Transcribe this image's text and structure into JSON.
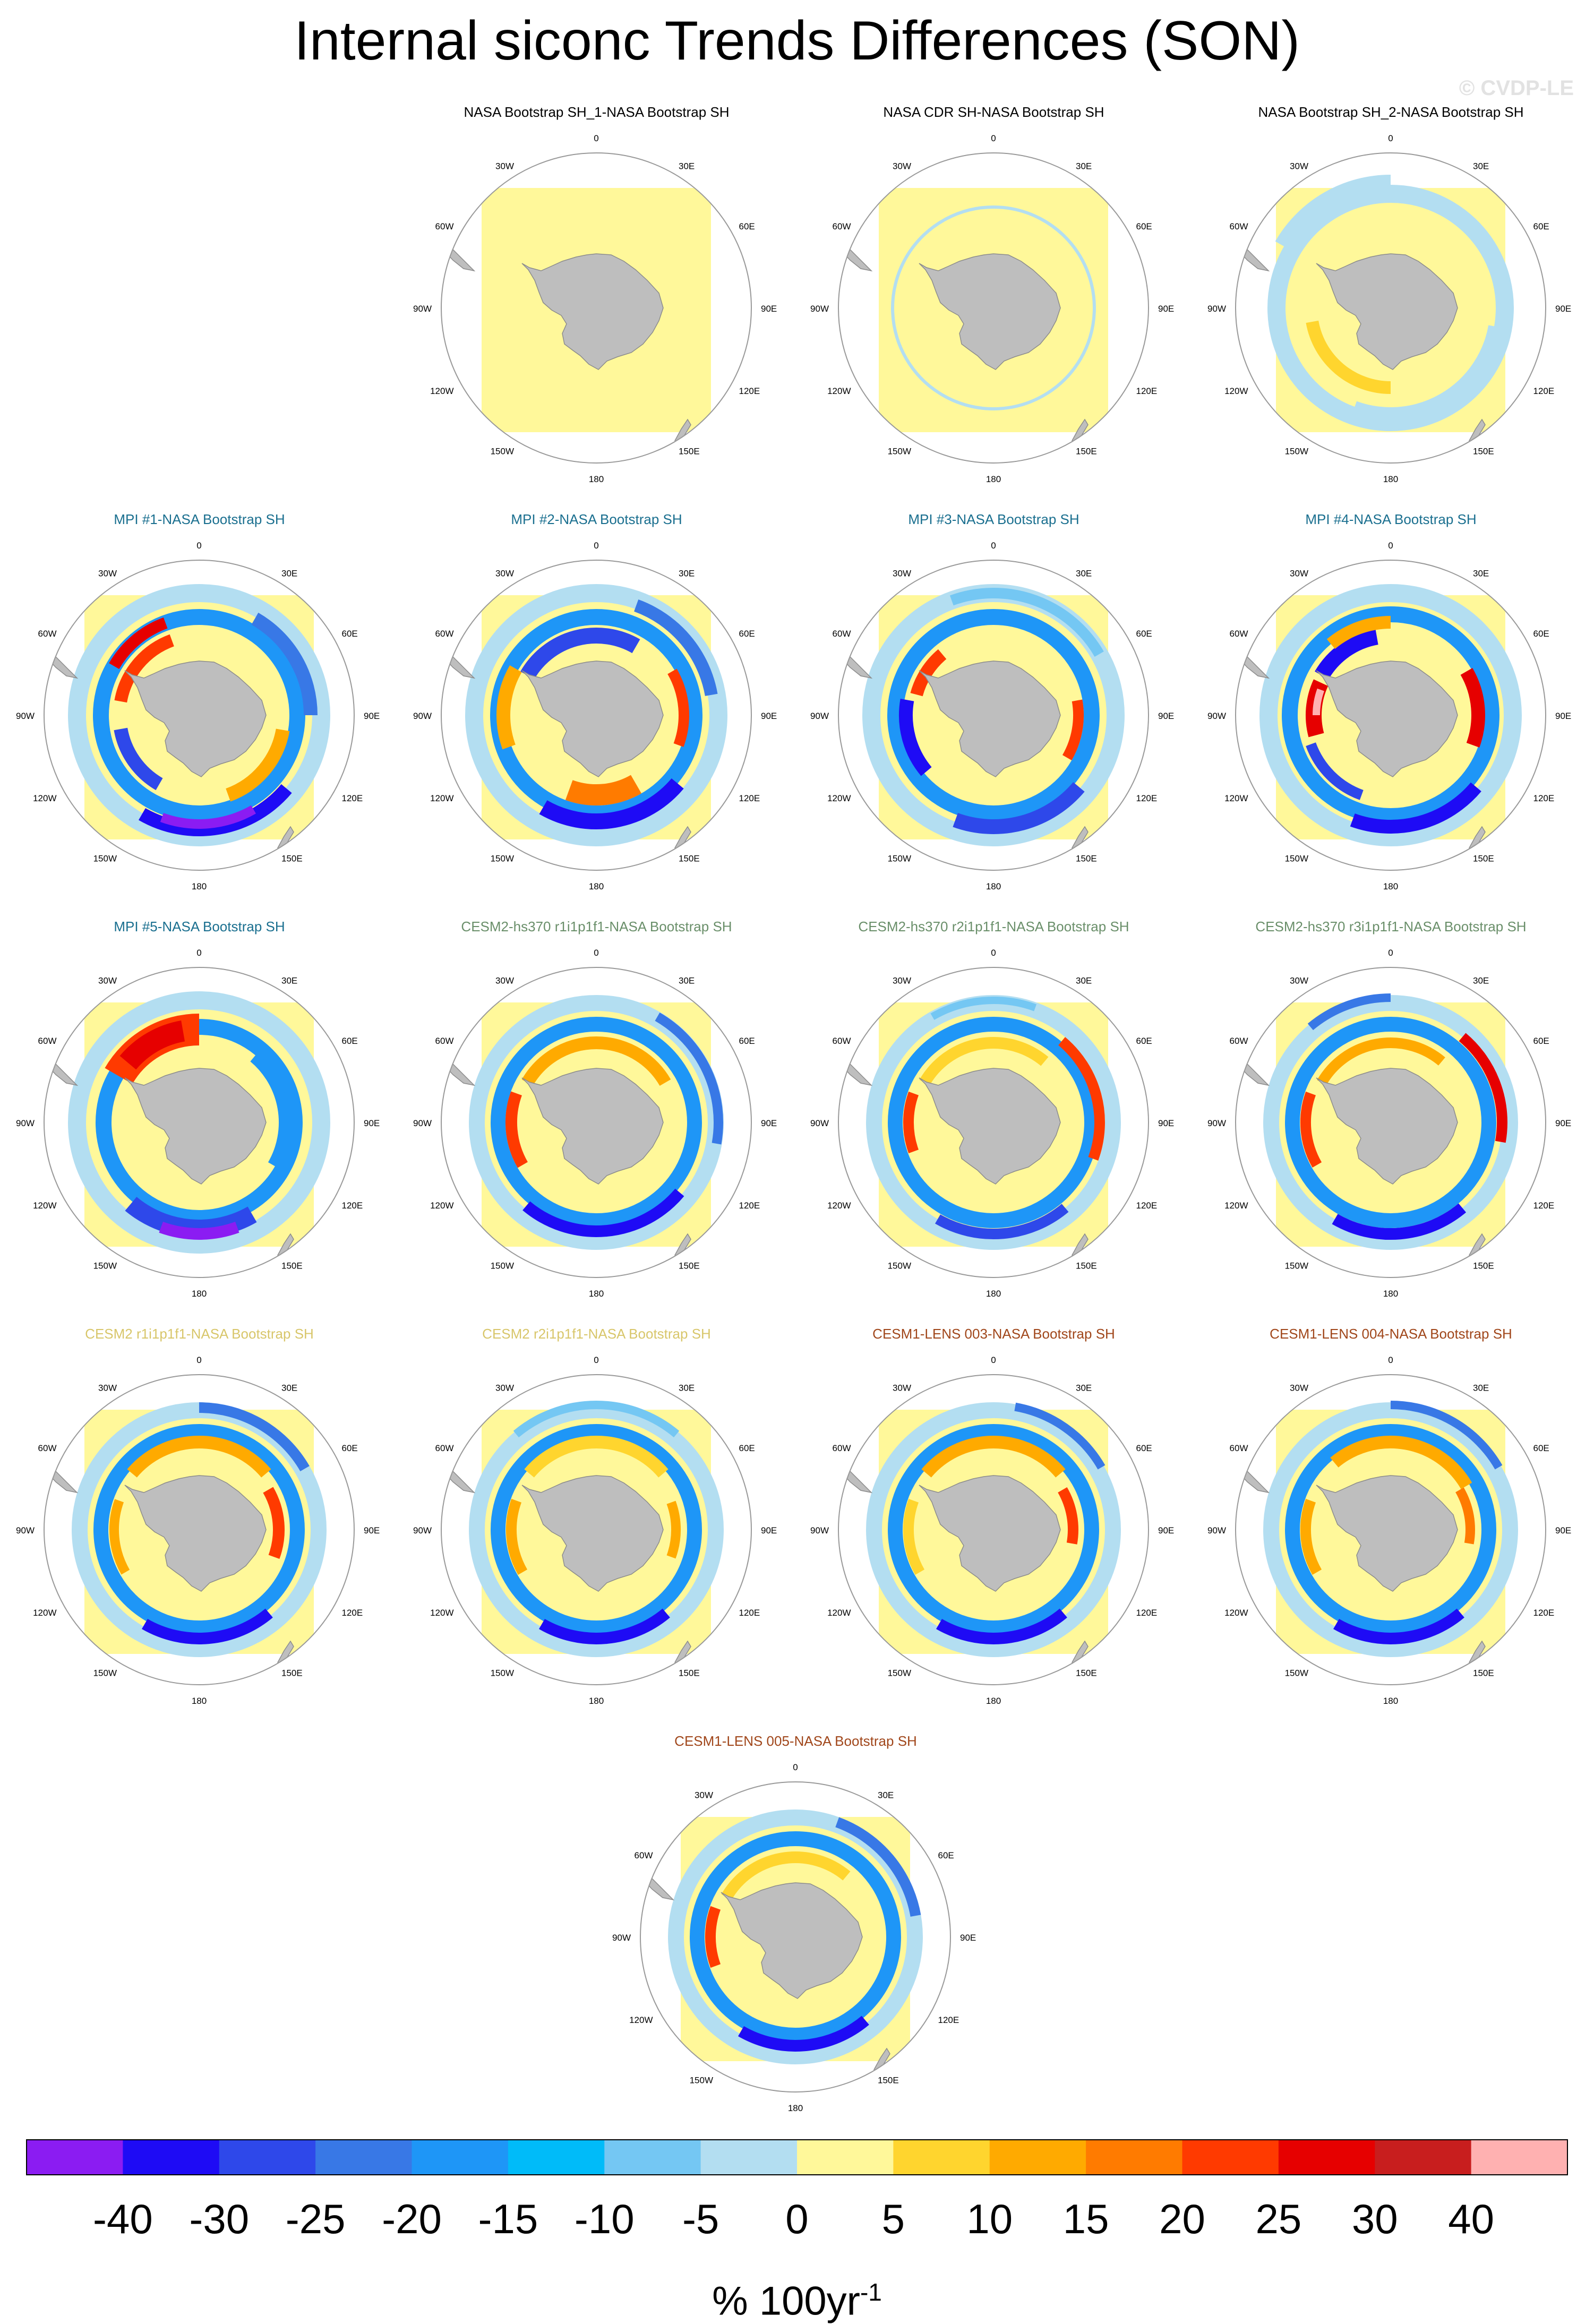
{
  "title": "Internal siconc Trends Differences (SON)",
  "watermark": "© CVDP-LE",
  "lon_labels": [
    "0",
    "30E",
    "60E",
    "90E",
    "120E",
    "150E",
    "180",
    "150W",
    "120W",
    "90W",
    "60W",
    "30W"
  ],
  "panels": [
    {
      "title": "NASA Bootstrap SH_1-NASA Bootstrap SH",
      "title_color": "#000000",
      "pattern": "zero"
    },
    {
      "title": "NASA CDR SH-NASA Bootstrap SH",
      "title_color": "#000000",
      "pattern": "cdr"
    },
    {
      "title": "NASA Bootstrap SH_2-NASA Bootstrap SH",
      "title_color": "#000000",
      "pattern": "sh2"
    },
    {
      "title": "MPI #1-NASA Bootstrap SH",
      "title_color": "#1a6f8f",
      "pattern": "mpi1"
    },
    {
      "title": "MPI #2-NASA Bootstrap SH",
      "title_color": "#1a6f8f",
      "pattern": "mpi2"
    },
    {
      "title": "MPI #3-NASA Bootstrap SH",
      "title_color": "#1a6f8f",
      "pattern": "mpi3"
    },
    {
      "title": "MPI #4-NASA Bootstrap SH",
      "title_color": "#1a6f8f",
      "pattern": "mpi4"
    },
    {
      "title": "MPI #5-NASA Bootstrap SH",
      "title_color": "#1a6f8f",
      "pattern": "mpi5"
    },
    {
      "title": "CESM2-hs370 r1i1p1f1-NASA Bootstrap SH",
      "title_color": "#6a8f6a",
      "pattern": "cesm_hs1"
    },
    {
      "title": "CESM2-hs370 r2i1p1f1-NASA Bootstrap SH",
      "title_color": "#6a8f6a",
      "pattern": "cesm_hs2"
    },
    {
      "title": "CESM2-hs370 r3i1p1f1-NASA Bootstrap SH",
      "title_color": "#6a8f6a",
      "pattern": "cesm_hs3"
    },
    {
      "title": "CESM2 r1i1p1f1-NASA Bootstrap SH",
      "title_color": "#d8c66a",
      "pattern": "cesm2_1"
    },
    {
      "title": "CESM2 r2i1p1f1-NASA Bootstrap SH",
      "title_color": "#d8c66a",
      "pattern": "cesm2_2"
    },
    {
      "title": "CESM1-LENS 003-NASA Bootstrap SH",
      "title_color": "#a0461a",
      "pattern": "lens3"
    },
    {
      "title": "CESM1-LENS 004-NASA Bootstrap SH",
      "title_color": "#a0461a",
      "pattern": "lens4"
    },
    {
      "title": "CESM1-LENS 005-NASA Bootstrap SH",
      "title_color": "#a0461a",
      "pattern": "lens5"
    }
  ],
  "colorbar": {
    "colors": [
      "#8b1cf2",
      "#1e0bf5",
      "#2e48ea",
      "#3878e6",
      "#1e96f7",
      "#00bbf9",
      "#74c7f3",
      "#b3def1",
      "#fff89a",
      "#ffd52e",
      "#ffaa00",
      "#ff7b00",
      "#ff3a00",
      "#e60000",
      "#c81e1e",
      "#ffb1b1"
    ],
    "labels": [
      "-40",
      "-30",
      "-25",
      "-20",
      "-15",
      "-10",
      "-5",
      "0",
      "5",
      "10",
      "15",
      "20",
      "25",
      "30",
      "40"
    ],
    "units": "% 100yr",
    "units_exp": "-1"
  }
}
